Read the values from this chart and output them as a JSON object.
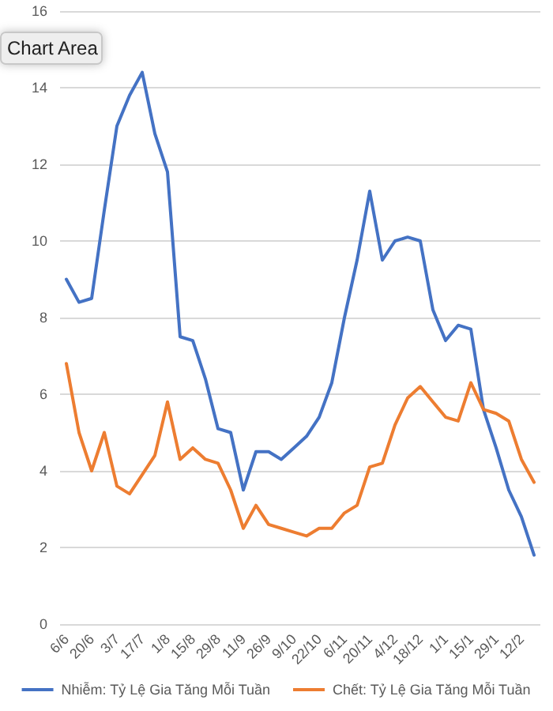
{
  "chart_data": {
    "type": "line",
    "categories": [
      "6/6",
      null,
      "20/6",
      null,
      "3/7",
      null,
      "17/7",
      null,
      "1/8",
      null,
      "15/8",
      null,
      "29/8",
      null,
      "11/9",
      null,
      "26/9",
      null,
      "9/10",
      null,
      "22/10",
      null,
      "6/11",
      null,
      "20/11",
      null,
      "4/12",
      null,
      "18/12",
      null,
      "1/1",
      null,
      "15/1",
      null,
      "29/1",
      null,
      "12/2",
      null
    ],
    "series": [
      {
        "name": "Nhiễm: Tỷ Lệ Gia Tăng Mỗi Tuần",
        "color": "#4472c4",
        "values": [
          9.0,
          8.4,
          8.5,
          10.8,
          13.0,
          13.8,
          14.4,
          12.8,
          11.8,
          7.5,
          7.4,
          6.4,
          5.1,
          5.0,
          3.5,
          4.5,
          4.5,
          4.3,
          4.6,
          4.9,
          5.4,
          6.3,
          8.0,
          9.5,
          11.3,
          9.5,
          10.0,
          10.1,
          10.0,
          8.2,
          7.4,
          7.8,
          7.7,
          5.6,
          4.6,
          3.5,
          2.8,
          1.8
        ]
      },
      {
        "name": "Chết: Tỷ Lệ Gia Tăng Mỗi Tuần",
        "color": "#ed7d31",
        "values": [
          6.8,
          5.0,
          4.0,
          5.0,
          3.6,
          3.4,
          3.9,
          4.4,
          5.8,
          4.3,
          4.6,
          4.3,
          4.2,
          3.5,
          2.5,
          3.1,
          2.6,
          2.5,
          2.4,
          2.3,
          2.5,
          2.5,
          2.9,
          3.1,
          4.1,
          4.2,
          5.2,
          5.9,
          6.2,
          5.8,
          5.4,
          5.3,
          6.3,
          5.6,
          5.5,
          5.3,
          4.3,
          3.7
        ]
      }
    ],
    "ylim": [
      0,
      16
    ],
    "yticks": [
      0,
      2,
      4,
      6,
      8,
      10,
      12,
      14,
      16
    ],
    "grid": "y",
    "legend": "bottom",
    "marker": "none",
    "line_style": "solid",
    "annotations": [
      "Chart Area"
    ]
  }
}
